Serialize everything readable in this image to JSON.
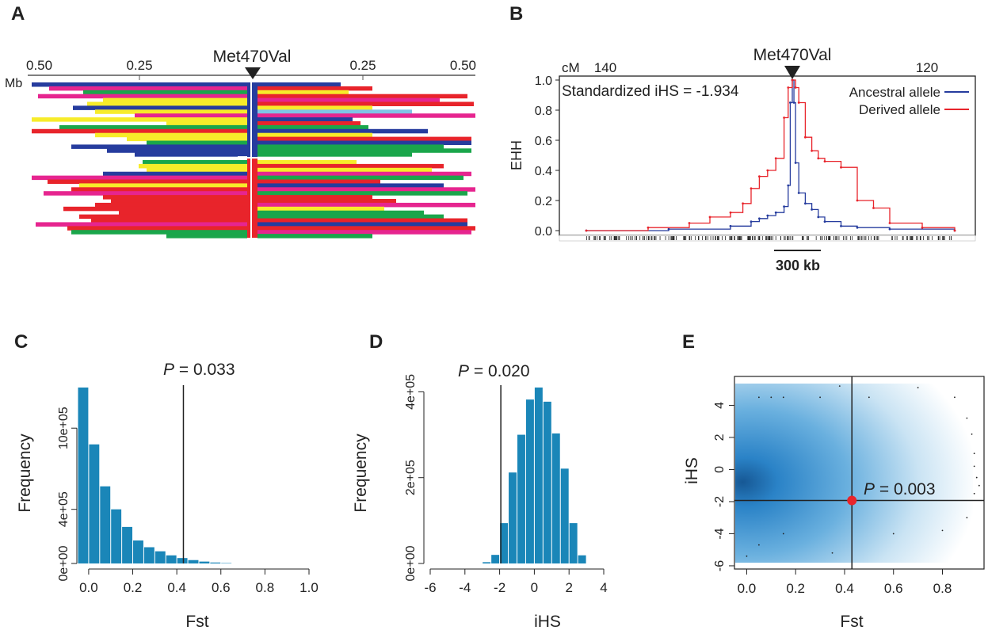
{
  "panels": {
    "a": "A",
    "b": "B",
    "c": "C",
    "d": "D",
    "e": "E"
  },
  "chart_data": [
    {
      "type": "haplotype-bifurcation",
      "panel": "A",
      "marker_label": "Met470Val",
      "axis_unit": "Mb",
      "tick_labels": [
        "0.50",
        "0.25",
        "0.25",
        "0.50"
      ],
      "colors": {
        "blue": "#263c9e",
        "red": "#e8242b",
        "yellow": "#f7ec2a",
        "green": "#1aa64b",
        "magenta": "#e6258f",
        "lightblue": "#7fc4e6"
      }
    },
    {
      "type": "line",
      "panel": "B",
      "marker_label": "Met470Val",
      "axis_unit": "cM",
      "top_ticks": [
        "140",
        "120"
      ],
      "annotation": "Standardized iHS = -1.934",
      "ylabel": "EHH",
      "y_ticks": [
        "0.0",
        "0.2",
        "0.4",
        "0.6",
        "0.8",
        "1.0"
      ],
      "ylim": [
        0,
        1.0
      ],
      "scale_bar_label": "300 kb",
      "x_unit": "kb relative to SNP",
      "series": [
        {
          "name": "Ancestral allele",
          "color": "#263c9e",
          "x": [
            -500,
            -300,
            -150,
            -100,
            -80,
            -60,
            -40,
            -20,
            -10,
            -5,
            0,
            5,
            10,
            20,
            40,
            60,
            80,
            100,
            150,
            200,
            300,
            500
          ],
          "y": [
            0,
            0.01,
            0.03,
            0.06,
            0.08,
            0.1,
            0.12,
            0.16,
            0.3,
            0.85,
            1.0,
            0.85,
            0.45,
            0.25,
            0.18,
            0.14,
            0.09,
            0.06,
            0.03,
            0.02,
            0.01,
            0
          ]
        },
        {
          "name": "Derived allele",
          "color": "#e8242b",
          "x": [
            -500,
            -350,
            -250,
            -200,
            -150,
            -120,
            -100,
            -80,
            -60,
            -40,
            -20,
            -10,
            0,
            10,
            20,
            40,
            60,
            80,
            100,
            150,
            200,
            250,
            300,
            400,
            500
          ],
          "y": [
            0,
            0.02,
            0.05,
            0.09,
            0.12,
            0.18,
            0.28,
            0.36,
            0.4,
            0.48,
            0.75,
            0.95,
            1.0,
            0.95,
            0.85,
            0.62,
            0.53,
            0.48,
            0.46,
            0.42,
            0.2,
            0.15,
            0.05,
            0.02,
            0
          ]
        }
      ]
    },
    {
      "type": "bar",
      "panel": "C",
      "p_label": "P",
      "p_value": " = 0.033",
      "xlabel": "Fst",
      "ylabel": "Frequency",
      "x_ticks": [
        "0.0",
        "0.2",
        "0.4",
        "0.6",
        "0.8",
        "1.0"
      ],
      "y_ticks": [
        "0e+00",
        "4e+05",
        "10e+05"
      ],
      "xlim": [
        -0.05,
        1.0
      ],
      "ylim": [
        0,
        1300000
      ],
      "bin_width": 0.05,
      "bin_starts": [
        -0.05,
        0.0,
        0.05,
        0.1,
        0.15,
        0.2,
        0.25,
        0.3,
        0.35,
        0.4,
        0.45,
        0.5,
        0.55,
        0.6
      ],
      "values": [
        1300000,
        880000,
        570000,
        400000,
        270000,
        170000,
        120000,
        90000,
        60000,
        40000,
        25000,
        14000,
        7000,
        3000
      ],
      "threshold": 0.43
    },
    {
      "type": "bar",
      "panel": "D",
      "p_label": "P",
      "p_value": " = 0.020",
      "xlabel": "iHS",
      "ylabel": "Frequency",
      "x_ticks": [
        "-6",
        "-4",
        "-2",
        "0",
        "2",
        "4"
      ],
      "y_ticks": [
        "0e+00",
        "2e+05",
        "4e+05"
      ],
      "xlim": [
        -6,
        4
      ],
      "ylim": [
        0,
        410000
      ],
      "bin_width": 0.5,
      "bin_starts": [
        -3,
        -2.5,
        -2,
        -1.5,
        -1,
        -0.5,
        0,
        0.5,
        1,
        1.5,
        2,
        2.5
      ],
      "values": [
        3000,
        20000,
        94000,
        212000,
        300000,
        382000,
        410000,
        377000,
        303000,
        221000,
        94000,
        19000
      ],
      "threshold": -1.93
    },
    {
      "type": "scatter",
      "panel": "E",
      "p_label": "P",
      "p_value": " = 0.003",
      "xlabel": "Fst",
      "ylabel": "iHS",
      "x_ticks": [
        "0.0",
        "0.2",
        "0.4",
        "0.6",
        "0.8"
      ],
      "y_ticks": [
        "-6",
        "-4",
        "-2",
        "0",
        "2",
        "4"
      ],
      "xlim": [
        -0.05,
        0.97
      ],
      "ylim": [
        -6.2,
        5.8
      ],
      "highlight_point": {
        "x": 0.43,
        "y": -1.93,
        "color": "#e8242b"
      },
      "vline": 0.43,
      "hline": -1.93
    }
  ]
}
